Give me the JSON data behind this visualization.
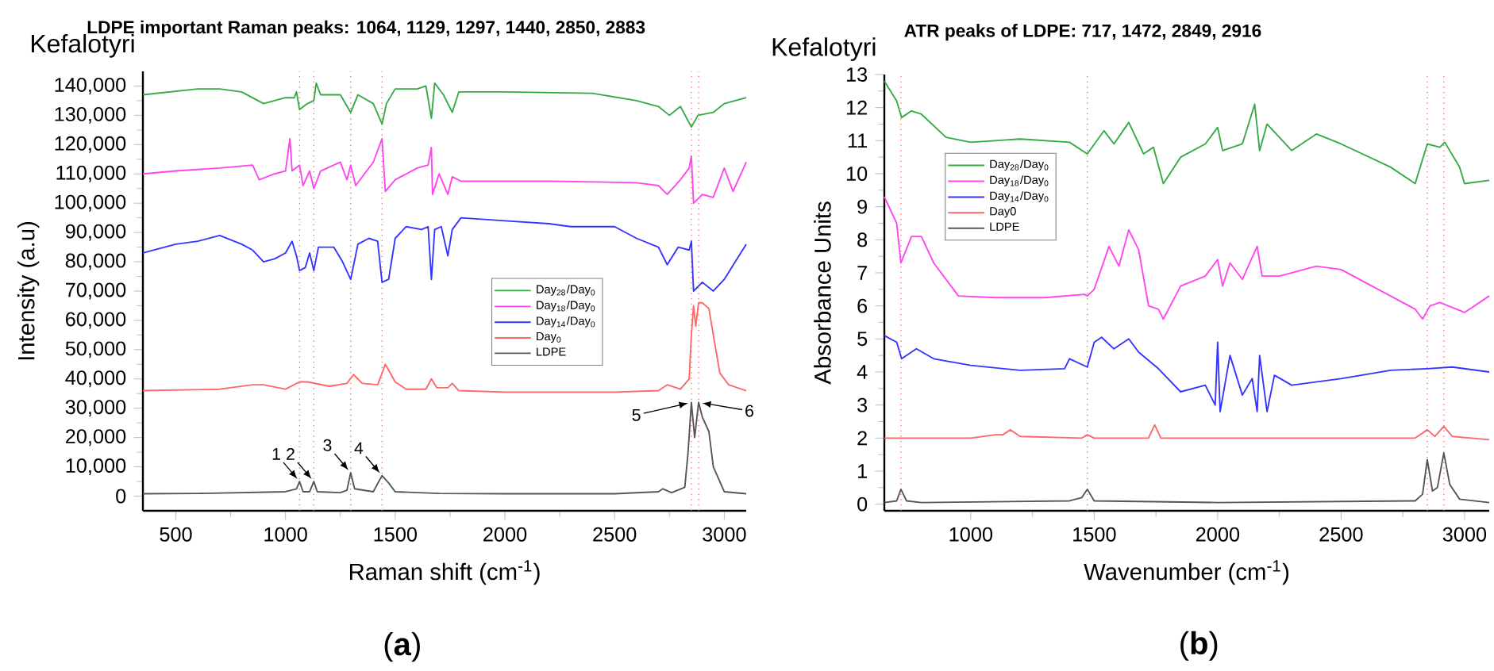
{
  "chart_data": [
    {
      "type": "line",
      "title": "**LDPE important Raman peaks: 1064, 1129, 1297, 1440, 2850, 2883**",
      "subtitle": "Kefalotyri",
      "xlabel": "Raman shift (cm$^{-1}$)",
      "ylabel": "Intensity (a.u)",
      "xlim": [
        350,
        3100
      ],
      "ylim": [
        -5000,
        145000
      ],
      "xticks": [
        500,
        1000,
        1500,
        2000,
        2500,
        3000
      ],
      "yticks": [
        {
          "value": 0,
          "label": "0"
        },
        {
          "value": 10000,
          "label": "10,000"
        },
        {
          "value": 20000,
          "label": "20,000"
        },
        {
          "value": 30000,
          "label": "30,000"
        },
        {
          "value": 40000,
          "label": "40,000"
        },
        {
          "value": 50000,
          "label": "50,000"
        },
        {
          "value": 60000,
          "label": "60,000"
        },
        {
          "value": 70000,
          "label": "70,000"
        },
        {
          "value": 80000,
          "label": "80,000"
        },
        {
          "value": 90000,
          "label": "90,000"
        },
        {
          "value": 100000,
          "label": "100,000"
        },
        {
          "value": 110000,
          "label": "110,000"
        },
        {
          "value": 120000,
          "label": "120,000"
        },
        {
          "value": 130000,
          "label": "130,000"
        },
        {
          "value": 140000,
          "label": "140,000"
        }
      ],
      "legend": "center",
      "grid": false,
      "line_style": "solid",
      "ref_lines": [
        {
          "axis": "x",
          "value": 1064,
          "color": "#ff6666",
          "line_style": "dotted"
        },
        {
          "axis": "x",
          "value": 1129,
          "color": "#ff6666",
          "line_style": "dotted"
        },
        {
          "axis": "x",
          "value": 1297,
          "color": "#ff6666",
          "line_style": "dotted"
        },
        {
          "axis": "x",
          "value": 1440,
          "color": "#ff6666",
          "line_style": "dotted"
        },
        {
          "axis": "x",
          "value": 2850,
          "color": "#ff6666",
          "line_style": "dotted"
        },
        {
          "axis": "x",
          "value": 2883,
          "color": "#ff6666",
          "line_style": "dotted"
        }
      ],
      "annotations": [
        {
          "text": "1",
          "x": 1064,
          "y": 5000
        },
        {
          "text": "2",
          "x": 1129,
          "y": 5000
        },
        {
          "text": "3",
          "x": 1297,
          "y": 8000
        },
        {
          "text": "4",
          "x": 1440,
          "y": 7000
        },
        {
          "text": "5",
          "x": 2850,
          "y": 32000
        },
        {
          "text": "6",
          "x": 2883,
          "y": 32000
        },
        "(**a**)"
      ],
      "series": [
        {
          "name": "Day$_{28}$/Day$_{0}$",
          "color": "#33aa44",
          "x": [
            350,
            600,
            700,
            800,
            900,
            1000,
            1040,
            1050,
            1064,
            1100,
            1129,
            1140,
            1160,
            1250,
            1297,
            1330,
            1400,
            1440,
            1460,
            1500,
            1600,
            1640,
            1665,
            1680,
            1720,
            1760,
            1790,
            2000,
            2400,
            2600,
            2700,
            2750,
            2800,
            2850,
            2880,
            2950,
            3000,
            3100
          ],
          "values": [
            137000,
            139000,
            139000,
            138000,
            134000,
            136000,
            136000,
            138000,
            132000,
            134000,
            135000,
            141000,
            137000,
            137000,
            131000,
            137000,
            134000,
            127000,
            134000,
            139000,
            139000,
            140000,
            129000,
            141000,
            137000,
            131000,
            138000,
            138000,
            137500,
            135000,
            133000,
            130000,
            133000,
            126000,
            130000,
            131000,
            134000,
            136000
          ]
        },
        {
          "name": "Day$_{18}$/Day$_{0}$",
          "color": "#ff44ee",
          "x": [
            350,
            500,
            700,
            850,
            880,
            950,
            1000,
            1020,
            1030,
            1064,
            1080,
            1110,
            1129,
            1160,
            1250,
            1280,
            1297,
            1320,
            1400,
            1440,
            1455,
            1500,
            1600,
            1650,
            1665,
            1670,
            1700,
            1740,
            1760,
            1800,
            2200,
            2600,
            2700,
            2740,
            2800,
            2840,
            2850,
            2860,
            2900,
            2950,
            3000,
            3040,
            3100
          ],
          "values": [
            110000,
            111000,
            112000,
            113000,
            108000,
            110000,
            111000,
            122000,
            111000,
            113000,
            106000,
            111000,
            105000,
            111000,
            114000,
            108000,
            113000,
            106000,
            114000,
            122000,
            104000,
            108000,
            112000,
            113000,
            119000,
            103000,
            110000,
            103000,
            109000,
            107500,
            107500,
            107000,
            106000,
            103000,
            108000,
            112000,
            116000,
            100000,
            103000,
            102000,
            112000,
            104000,
            114000
          ]
        },
        {
          "name": "Day$_{14}$/Day$_{0}$",
          "color": "#3333ff",
          "x": [
            350,
            500,
            600,
            700,
            800,
            850,
            900,
            950,
            1000,
            1030,
            1050,
            1064,
            1090,
            1110,
            1129,
            1150,
            1220,
            1260,
            1297,
            1330,
            1380,
            1420,
            1440,
            1470,
            1500,
            1550,
            1620,
            1650,
            1665,
            1680,
            1710,
            1740,
            1760,
            1800,
            2000,
            2200,
            2300,
            2500,
            2600,
            2700,
            2740,
            2790,
            2840,
            2850,
            2860,
            2900,
            2950,
            3000,
            3050,
            3100
          ],
          "values": [
            83000,
            86000,
            87000,
            89000,
            86000,
            84000,
            80000,
            81000,
            83000,
            87000,
            82000,
            77000,
            78000,
            83000,
            77000,
            85000,
            85000,
            80000,
            74000,
            86000,
            88000,
            87000,
            73000,
            74000,
            88000,
            92000,
            91000,
            92000,
            74000,
            91000,
            92000,
            82000,
            91000,
            95000,
            94000,
            93000,
            92000,
            92000,
            88000,
            85000,
            79000,
            85000,
            84000,
            87000,
            70000,
            73000,
            70000,
            74000,
            80000,
            86000
          ]
        },
        {
          "name": "Day$_{0}$",
          "color": "#ff6666",
          "x": [
            350,
            700,
            850,
            900,
            1000,
            1064,
            1100,
            1200,
            1280,
            1310,
            1350,
            1420,
            1455,
            1500,
            1550,
            1640,
            1665,
            1690,
            1740,
            1760,
            1790,
            2000,
            2500,
            2700,
            2740,
            2800,
            2840,
            2850,
            2860,
            2870,
            2883,
            2900,
            2930,
            2950,
            2980,
            3020,
            3100
          ],
          "values": [
            36000,
            36500,
            38000,
            38000,
            36500,
            39000,
            39000,
            37500,
            38500,
            41500,
            38500,
            38000,
            45000,
            39000,
            36500,
            36500,
            40000,
            37000,
            37000,
            38500,
            36000,
            35500,
            35500,
            36000,
            38000,
            36500,
            40000,
            55000,
            65000,
            58000,
            66000,
            66000,
            64000,
            55000,
            42000,
            38000,
            36000
          ]
        },
        {
          "name": "LDPE",
          "color": "#555555",
          "x": [
            350,
            600,
            800,
            1000,
            1050,
            1064,
            1080,
            1110,
            1129,
            1145,
            1250,
            1280,
            1297,
            1315,
            1400,
            1440,
            1470,
            1500,
            1700,
            2000,
            2500,
            2700,
            2720,
            2760,
            2820,
            2835,
            2850,
            2865,
            2883,
            2900,
            2930,
            2950,
            3000,
            3100
          ],
          "values": [
            800,
            900,
            1200,
            1500,
            2500,
            5000,
            1500,
            1500,
            5000,
            1500,
            1200,
            2000,
            8000,
            2500,
            1500,
            7000,
            4500,
            1500,
            900,
            800,
            800,
            1500,
            2500,
            1200,
            3000,
            15000,
            32000,
            20000,
            32000,
            27000,
            22000,
            10000,
            1500,
            800
          ]
        }
      ]
    },
    {
      "type": "line",
      "title": "**ATR peaks of LDPE: 717, 1472, 2849, 2916**",
      "subtitle": "Kefalotyri",
      "xlabel": "Wavenumber (cm$^{-1}$)",
      "ylabel": "Absorbance Units",
      "xlim": [
        650,
        3100
      ],
      "ylim": [
        -0.2,
        13
      ],
      "xticks": [
        1000,
        1500,
        2000,
        2500,
        3000
      ],
      "yticks": [
        0,
        1,
        2,
        3,
        4,
        5,
        6,
        7,
        8,
        9,
        10,
        11,
        12,
        13
      ],
      "legend": "center left",
      "grid": false,
      "line_style": "solid",
      "ref_lines": [
        {
          "axis": "x",
          "value": 717,
          "color": "#ff6666",
          "line_style": "dotted"
        },
        {
          "axis": "x",
          "value": 1472,
          "color": "#ff6666",
          "line_style": "dotted"
        },
        {
          "axis": "x",
          "value": 2849,
          "color": "#ff6666",
          "line_style": "dotted"
        },
        {
          "axis": "x",
          "value": 2916,
          "color": "#ff6666",
          "line_style": "dotted"
        }
      ],
      "annotations": [
        "(**b**)"
      ],
      "series": [
        {
          "name": "Day$_{28}$/Day$_{0}$",
          "color": "#33aa44",
          "x": [
            650,
            700,
            720,
            760,
            800,
            900,
            1000,
            1200,
            1400,
            1472,
            1540,
            1580,
            1640,
            1700,
            1740,
            1780,
            1850,
            1950,
            2000,
            2020,
            2100,
            2150,
            2170,
            2200,
            2300,
            2400,
            2500,
            2700,
            2800,
            2849,
            2900,
            2920,
            2980,
            3000,
            3100
          ],
          "values": [
            12.8,
            12.2,
            11.7,
            11.9,
            11.8,
            11.1,
            10.95,
            11.05,
            10.95,
            10.6,
            11.3,
            10.9,
            11.55,
            10.6,
            10.8,
            9.7,
            10.5,
            10.9,
            11.4,
            10.7,
            10.9,
            12.1,
            10.7,
            11.5,
            10.7,
            11.2,
            10.9,
            10.2,
            9.7,
            10.9,
            10.8,
            10.95,
            10.2,
            9.7,
            9.8
          ]
        },
        {
          "name": "Day$_{18}$/Day$_{0}$",
          "color": "#ff44ee",
          "x": [
            650,
            700,
            717,
            760,
            800,
            850,
            950,
            1100,
            1300,
            1460,
            1472,
            1500,
            1560,
            1600,
            1640,
            1680,
            1720,
            1760,
            1780,
            1850,
            1950,
            2000,
            2020,
            2050,
            2100,
            2160,
            2180,
            2250,
            2400,
            2500,
            2700,
            2800,
            2830,
            2860,
            2900,
            3000,
            3100
          ],
          "values": [
            9.3,
            8.5,
            7.3,
            8.1,
            8.1,
            7.3,
            6.3,
            6.25,
            6.25,
            6.35,
            6.3,
            6.5,
            7.8,
            7.2,
            8.3,
            7.7,
            6.0,
            5.9,
            5.6,
            6.6,
            6.9,
            7.4,
            6.6,
            7.3,
            6.8,
            7.8,
            6.9,
            6.9,
            7.2,
            7.1,
            6.3,
            5.9,
            5.6,
            6.0,
            6.1,
            5.8,
            6.3
          ]
        },
        {
          "name": "Day$_{14}$/Day$_{0}$",
          "color": "#3333ff",
          "x": [
            650,
            700,
            720,
            780,
            850,
            1000,
            1200,
            1380,
            1400,
            1472,
            1500,
            1530,
            1580,
            1640,
            1680,
            1760,
            1850,
            1950,
            1990,
            2000,
            2010,
            2050,
            2100,
            2140,
            2160,
            2170,
            2200,
            2230,
            2300,
            2500,
            2700,
            2849,
            2950,
            3100
          ],
          "values": [
            5.1,
            4.9,
            4.4,
            4.7,
            4.4,
            4.2,
            4.05,
            4.1,
            4.4,
            4.15,
            4.9,
            5.05,
            4.7,
            5.0,
            4.6,
            4.1,
            3.4,
            3.6,
            3.0,
            4.9,
            2.8,
            4.5,
            3.3,
            3.8,
            2.8,
            4.5,
            2.8,
            3.9,
            3.6,
            3.8,
            4.05,
            4.1,
            4.15,
            4.0
          ]
        },
        {
          "name": "Day0",
          "color": "#ff6666",
          "x": [
            650,
            1000,
            1100,
            1130,
            1160,
            1200,
            1450,
            1472,
            1500,
            1720,
            1745,
            1770,
            2800,
            2849,
            2880,
            2916,
            2950,
            3100
          ],
          "values": [
            2.0,
            2.0,
            2.1,
            2.1,
            2.25,
            2.05,
            2.0,
            2.1,
            2.0,
            2.0,
            2.4,
            2.0,
            2.0,
            2.25,
            2.05,
            2.35,
            2.05,
            1.95
          ]
        },
        {
          "name": "LDPE",
          "color": "#555555",
          "x": [
            650,
            700,
            717,
            740,
            800,
            1400,
            1450,
            1472,
            1500,
            2000,
            2800,
            2830,
            2849,
            2870,
            2890,
            2916,
            2940,
            2980,
            3100
          ],
          "values": [
            0.05,
            0.1,
            0.45,
            0.1,
            0.05,
            0.1,
            0.2,
            0.45,
            0.1,
            0.05,
            0.1,
            0.3,
            1.35,
            0.4,
            0.5,
            1.55,
            0.6,
            0.15,
            0.05
          ]
        }
      ]
    }
  ]
}
